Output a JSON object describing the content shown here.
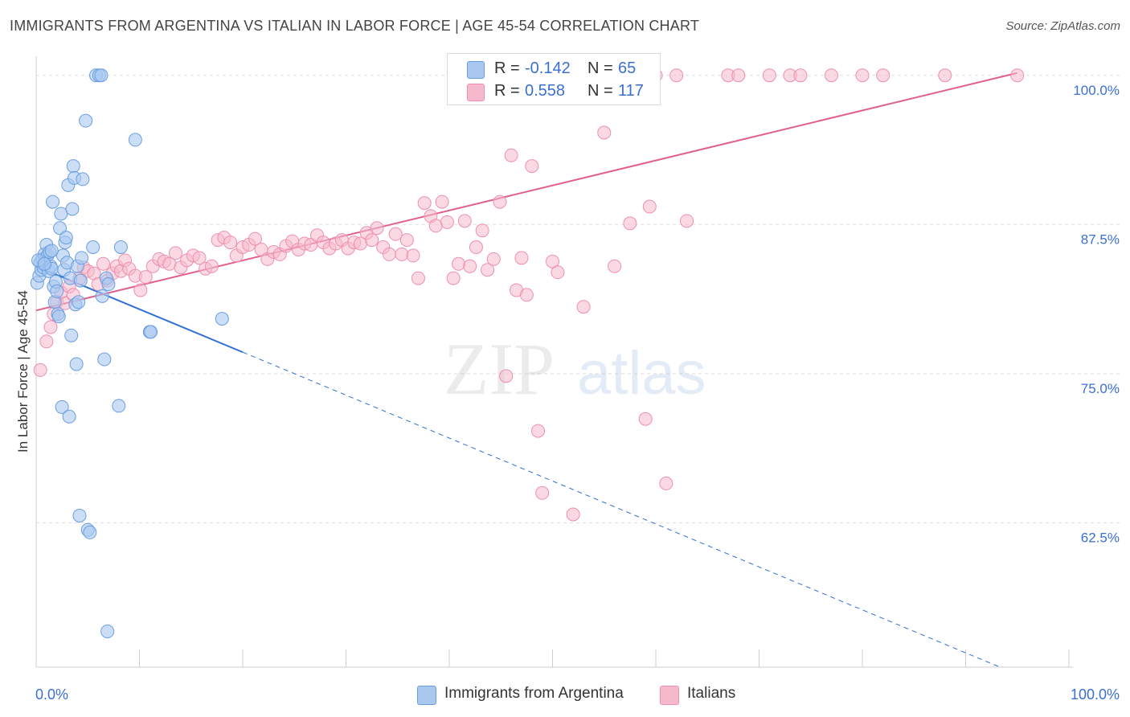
{
  "header": {
    "title": "IMMIGRANTS FROM ARGENTINA VS ITALIAN IN LABOR FORCE | AGE 45-54 CORRELATION CHART",
    "source": "Source: ZipAtlas.com"
  },
  "watermark": {
    "zip": "ZIP",
    "atlas": "atlas"
  },
  "legend_top": {
    "series": [
      {
        "r_label": "R =",
        "r_value": "-0.142",
        "n_label": "N =",
        "n_value": "65"
      },
      {
        "r_label": "R =",
        "r_value": "0.558",
        "n_label": "N =",
        "n_value": "117"
      }
    ]
  },
  "legend_bottom": {
    "items": [
      {
        "label": "Immigrants from Argentina"
      },
      {
        "label": "Italians"
      }
    ]
  },
  "colors": {
    "blue_fill": "#a9c8f0",
    "blue_stroke": "#6a9ee0",
    "blue_line": "#2f6fd6",
    "pink_fill": "#f6b9cc",
    "pink_stroke": "#ee8fae",
    "pink_line": "#e0608d",
    "axis_text": "#3b6fd4",
    "grid": "#dddddd"
  },
  "chart_data": {
    "type": "scatter",
    "title": "IMMIGRANTS FROM ARGENTINA VS ITALIAN IN LABOR FORCE | AGE 45-54 CORRELATION CHART",
    "xlabel": "",
    "ylabel": "In Labor Force | Age 45-54",
    "xlim": [
      0,
      100
    ],
    "ylim": [
      50.4,
      101.6
    ],
    "x_tick_labels": [
      "0.0%",
      "100.0%"
    ],
    "y_ticks": [
      62.5,
      75.0,
      87.5,
      100.0
    ],
    "y_tick_labels": [
      "62.5%",
      "75.0%",
      "87.5%",
      "100.0%"
    ],
    "grid": true,
    "legend_position": "top-center",
    "series": [
      {
        "name": "Immigrants from Argentina",
        "color": "#a9c8f0",
        "r": -0.142,
        "n": 65,
        "trend": {
          "x0": 0,
          "y0": 84.0,
          "x1": 20,
          "y1": 76.8,
          "dash_to_x": 100,
          "dash_to_y": 48.0
        },
        "points": [
          [
            0.1,
            82.6
          ],
          [
            0.3,
            83.2
          ],
          [
            0.4,
            84.3
          ],
          [
            0.5,
            83.7
          ],
          [
            0.6,
            84.6
          ],
          [
            0.7,
            83.9
          ],
          [
            0.8,
            85.0
          ],
          [
            0.9,
            84.1
          ],
          [
            1.0,
            85.8
          ],
          [
            1.1,
            84.9
          ],
          [
            1.2,
            83.6
          ],
          [
            1.3,
            85.2
          ],
          [
            1.4,
            84.0
          ],
          [
            1.5,
            83.8
          ],
          [
            1.6,
            89.4
          ],
          [
            1.7,
            82.3
          ],
          [
            1.8,
            81.0
          ],
          [
            1.9,
            82.7
          ],
          [
            2.0,
            81.9
          ],
          [
            2.1,
            80.0
          ],
          [
            2.2,
            79.8
          ],
          [
            2.3,
            87.2
          ],
          [
            2.4,
            88.4
          ],
          [
            2.5,
            72.2
          ],
          [
            2.6,
            84.9
          ],
          [
            2.7,
            83.7
          ],
          [
            2.8,
            86.0
          ],
          [
            2.9,
            86.4
          ],
          [
            3.0,
            84.3
          ],
          [
            3.1,
            90.8
          ],
          [
            3.2,
            71.4
          ],
          [
            3.3,
            83.0
          ],
          [
            3.4,
            78.2
          ],
          [
            3.5,
            88.8
          ],
          [
            3.6,
            92.4
          ],
          [
            3.7,
            91.4
          ],
          [
            3.8,
            80.8
          ],
          [
            3.9,
            75.8
          ],
          [
            4.0,
            84.0
          ],
          [
            4.1,
            81.0
          ],
          [
            4.2,
            63.1
          ],
          [
            4.3,
            82.8
          ],
          [
            4.4,
            84.7
          ],
          [
            4.5,
            91.3
          ],
          [
            4.8,
            96.2
          ],
          [
            5.0,
            61.9
          ],
          [
            5.2,
            61.7
          ],
          [
            5.5,
            85.6
          ],
          [
            5.8,
            100.0
          ],
          [
            6.1,
            100.0
          ],
          [
            6.3,
            100.0
          ],
          [
            6.4,
            81.5
          ],
          [
            6.6,
            76.2
          ],
          [
            6.8,
            83.0
          ],
          [
            6.9,
            53.4
          ],
          [
            7.0,
            82.5
          ],
          [
            8.0,
            72.3
          ],
          [
            8.2,
            85.6
          ],
          [
            9.6,
            94.6
          ],
          [
            11.0,
            78.5
          ],
          [
            11.1,
            78.5
          ],
          [
            18.0,
            79.6
          ],
          [
            0.2,
            84.5
          ],
          [
            0.8,
            84.2
          ],
          [
            1.5,
            85.3
          ]
        ]
      },
      {
        "name": "Italians",
        "color": "#f6b9cc",
        "r": 0.558,
        "n": 117,
        "trend": {
          "x0": 0,
          "y0": 80.3,
          "x1": 95,
          "y1": 100.2
        },
        "points": [
          [
            0.4,
            75.3
          ],
          [
            1.0,
            77.7
          ],
          [
            1.4,
            78.9
          ],
          [
            1.7,
            80.0
          ],
          [
            2.0,
            81.0
          ],
          [
            2.4,
            81.8
          ],
          [
            2.8,
            80.9
          ],
          [
            3.2,
            82.3
          ],
          [
            3.6,
            81.6
          ],
          [
            4.2,
            83.0
          ],
          [
            4.6,
            83.9
          ],
          [
            5.0,
            83.6
          ],
          [
            5.6,
            83.4
          ],
          [
            6.0,
            82.5
          ],
          [
            6.5,
            84.2
          ],
          [
            6.9,
            82.8
          ],
          [
            7.4,
            83.4
          ],
          [
            7.8,
            84.0
          ],
          [
            8.2,
            83.6
          ],
          [
            8.6,
            84.5
          ],
          [
            9.0,
            83.8
          ],
          [
            9.6,
            83.2
          ],
          [
            10.1,
            82.0
          ],
          [
            10.6,
            83.1
          ],
          [
            11.3,
            84.0
          ],
          [
            11.9,
            84.6
          ],
          [
            12.4,
            84.4
          ],
          [
            12.9,
            84.2
          ],
          [
            13.5,
            85.1
          ],
          [
            14.0,
            83.9
          ],
          [
            14.6,
            84.5
          ],
          [
            15.2,
            84.9
          ],
          [
            15.8,
            84.7
          ],
          [
            16.4,
            83.8
          ],
          [
            17.0,
            84.0
          ],
          [
            17.6,
            86.2
          ],
          [
            18.2,
            86.4
          ],
          [
            18.8,
            86.0
          ],
          [
            19.4,
            84.9
          ],
          [
            20.0,
            85.6
          ],
          [
            20.6,
            85.8
          ],
          [
            21.2,
            86.3
          ],
          [
            21.8,
            85.4
          ],
          [
            22.4,
            84.6
          ],
          [
            23.0,
            85.2
          ],
          [
            23.6,
            85.0
          ],
          [
            24.2,
            85.7
          ],
          [
            24.8,
            86.1
          ],
          [
            25.4,
            85.4
          ],
          [
            26.0,
            85.9
          ],
          [
            26.6,
            85.8
          ],
          [
            27.2,
            86.6
          ],
          [
            27.8,
            86.0
          ],
          [
            28.4,
            85.5
          ],
          [
            29.0,
            85.9
          ],
          [
            29.6,
            86.2
          ],
          [
            30.2,
            85.5
          ],
          [
            30.8,
            86.0
          ],
          [
            31.4,
            85.9
          ],
          [
            32.0,
            86.8
          ],
          [
            32.5,
            86.2
          ],
          [
            33.0,
            87.2
          ],
          [
            33.6,
            85.6
          ],
          [
            34.2,
            85.0
          ],
          [
            34.8,
            86.7
          ],
          [
            35.4,
            85.0
          ],
          [
            35.9,
            86.2
          ],
          [
            36.5,
            84.9
          ],
          [
            37.0,
            83.0
          ],
          [
            37.6,
            89.3
          ],
          [
            38.2,
            88.2
          ],
          [
            38.7,
            87.4
          ],
          [
            39.3,
            89.4
          ],
          [
            39.8,
            87.7
          ],
          [
            40.4,
            83.0
          ],
          [
            40.9,
            84.2
          ],
          [
            41.5,
            87.8
          ],
          [
            42.0,
            84.0
          ],
          [
            42.6,
            85.6
          ],
          [
            43.2,
            87.0
          ],
          [
            43.7,
            83.7
          ],
          [
            44.3,
            84.6
          ],
          [
            44.9,
            89.4
          ],
          [
            45.5,
            74.8
          ],
          [
            46.0,
            93.3
          ],
          [
            46.5,
            82.0
          ],
          [
            47.0,
            84.7
          ],
          [
            47.5,
            81.6
          ],
          [
            48.0,
            92.4
          ],
          [
            48.6,
            70.2
          ],
          [
            49.0,
            65.0
          ],
          [
            50.0,
            84.4
          ],
          [
            50.5,
            83.5
          ],
          [
            51.0,
            100.0
          ],
          [
            52.0,
            63.2
          ],
          [
            53.0,
            80.6
          ],
          [
            54.0,
            100.0
          ],
          [
            55.0,
            95.2
          ],
          [
            56.0,
            84.0
          ],
          [
            57.5,
            87.6
          ],
          [
            58.4,
            100.0
          ],
          [
            59.0,
            71.2
          ],
          [
            59.4,
            89.0
          ],
          [
            60.0,
            100.0
          ],
          [
            61.0,
            65.8
          ],
          [
            62.0,
            100.0
          ],
          [
            63.0,
            87.8
          ],
          [
            67.0,
            100.0
          ],
          [
            68.0,
            100.0
          ],
          [
            71.0,
            100.0
          ],
          [
            73.0,
            100.0
          ],
          [
            74.0,
            100.0
          ],
          [
            77.0,
            100.0
          ],
          [
            80.0,
            100.0
          ],
          [
            82.0,
            100.0
          ],
          [
            88.0,
            100.0
          ],
          [
            95.0,
            100.0
          ]
        ]
      }
    ]
  }
}
